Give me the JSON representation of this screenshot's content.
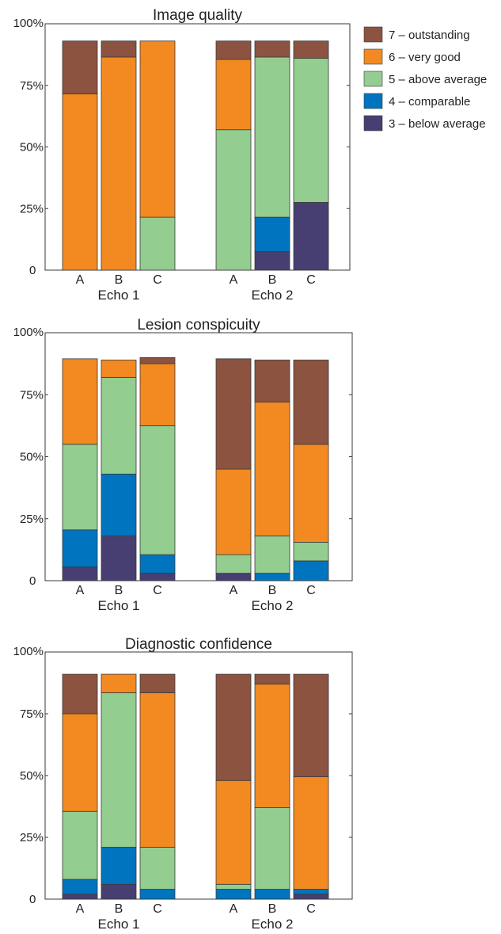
{
  "legend": {
    "entries": [
      {
        "label": "7 – outstanding",
        "color": "#8B5340"
      },
      {
        "label": "6 – very good",
        "color": "#F28A21"
      },
      {
        "label": "5 – above average",
        "color": "#93CD8F"
      },
      {
        "label": "4 – comparable",
        "color": "#0074BE"
      },
      {
        "label": "3 – below average",
        "color": "#473F72"
      }
    ]
  },
  "chart_data": [
    {
      "type": "bar",
      "stacked": true,
      "title": "Image quality",
      "y_ticks": [
        "0",
        "25%",
        "50%",
        "75%",
        "100%"
      ],
      "ylim": [
        0,
        100
      ],
      "groups": [
        "Echo 1",
        "Echo 2"
      ],
      "categories": [
        "A",
        "B",
        "C"
      ],
      "grid": false,
      "legend_position": "right of top panel",
      "bars": [
        {
          "group": "Echo 1",
          "category": "A",
          "stack": [
            0,
            0,
            0,
            71.5,
            21.5
          ]
        },
        {
          "group": "Echo 1",
          "category": "B",
          "stack": [
            0,
            0,
            0,
            86.5,
            6.5
          ]
        },
        {
          "group": "Echo 1",
          "category": "C",
          "stack": [
            0,
            0,
            21.5,
            71.5,
            0
          ]
        },
        {
          "group": "Echo 2",
          "category": "A",
          "stack": [
            0,
            0,
            57,
            28.5,
            7.5
          ]
        },
        {
          "group": "Echo 2",
          "category": "B",
          "stack": [
            7.5,
            14,
            65,
            0,
            6.5
          ]
        },
        {
          "group": "Echo 2",
          "category": "C",
          "stack": [
            27.5,
            0,
            58.5,
            0,
            7
          ]
        }
      ]
    },
    {
      "type": "bar",
      "stacked": true,
      "title": "Lesion conspicuity",
      "y_ticks": [
        "0",
        "25%",
        "50%",
        "75%",
        "100%"
      ],
      "ylim": [
        0,
        100
      ],
      "groups": [
        "Echo 1",
        "Echo 2"
      ],
      "categories": [
        "A",
        "B",
        "C"
      ],
      "grid": false,
      "bars": [
        {
          "group": "Echo 1",
          "category": "A",
          "stack": [
            5.5,
            15,
            34.5,
            34.5,
            0
          ]
        },
        {
          "group": "Echo 1",
          "category": "B",
          "stack": [
            18,
            25,
            39,
            7,
            0
          ]
        },
        {
          "group": "Echo 1",
          "category": "C",
          "stack": [
            3,
            7.5,
            52,
            25,
            2.5
          ]
        },
        {
          "group": "Echo 2",
          "category": "A",
          "stack": [
            3,
            0,
            7.5,
            34.5,
            44.5
          ]
        },
        {
          "group": "Echo 2",
          "category": "B",
          "stack": [
            0,
            3,
            15,
            54,
            17
          ]
        },
        {
          "group": "Echo 2",
          "category": "C",
          "stack": [
            0,
            8,
            7.5,
            39.5,
            34
          ]
        }
      ]
    },
    {
      "type": "bar",
      "stacked": true,
      "title": "Diagnostic confidence",
      "y_ticks": [
        "0",
        "25%",
        "50%",
        "75%",
        "100%"
      ],
      "ylim": [
        0,
        100
      ],
      "groups": [
        "Echo 1",
        "Echo 2"
      ],
      "categories": [
        "A",
        "B",
        "C"
      ],
      "grid": false,
      "bars": [
        {
          "group": "Echo 1",
          "category": "A",
          "stack": [
            2,
            6,
            27.5,
            39.5,
            16
          ]
        },
        {
          "group": "Echo 1",
          "category": "B",
          "stack": [
            6,
            15,
            62.5,
            7.5,
            0
          ]
        },
        {
          "group": "Echo 1",
          "category": "C",
          "stack": [
            0,
            4,
            17,
            62.5,
            7.5
          ]
        },
        {
          "group": "Echo 2",
          "category": "A",
          "stack": [
            0,
            4,
            2,
            42,
            43
          ]
        },
        {
          "group": "Echo 2",
          "category": "B",
          "stack": [
            0,
            4,
            33,
            50,
            4
          ]
        },
        {
          "group": "Echo 2",
          "category": "C",
          "stack": [
            2,
            2,
            0,
            45.5,
            41.5
          ]
        }
      ]
    }
  ]
}
